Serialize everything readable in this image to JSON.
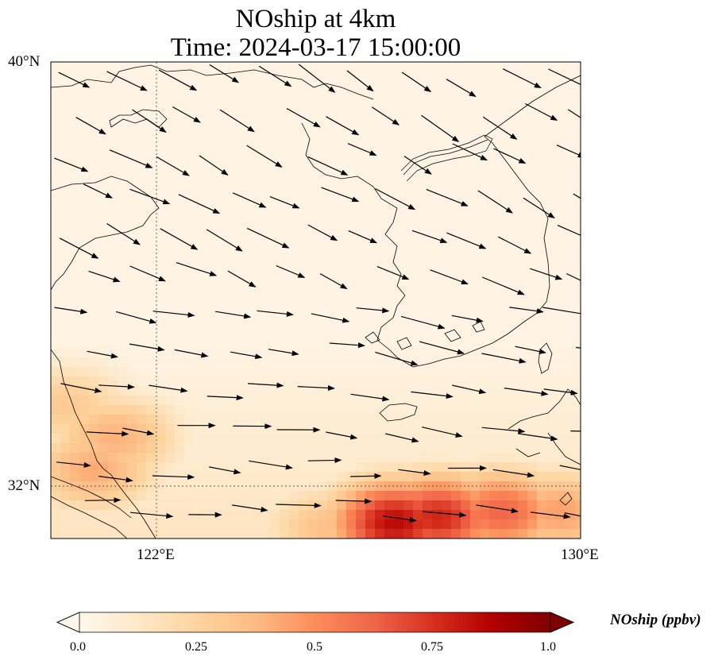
{
  "title_line1": "NOship at 4km",
  "title_line2": "Time: 2024-03-17 15:00:00",
  "lat_labels": [
    "40°N",
    "32°N"
  ],
  "lon_labels": [
    "122°E",
    "130°E"
  ],
  "colorbar": {
    "label": "NOship (ppbv)",
    "ticks": [
      "0.0",
      "0.25",
      "0.5",
      "0.75",
      "1.0"
    ],
    "min": 0.0,
    "max": 1.0,
    "colormap": "OrRd",
    "extend": "both"
  },
  "map": {
    "lon_range": [
      120,
      130
    ],
    "lat_range": [
      31,
      40
    ],
    "gridline_lons": [
      122
    ],
    "gridline_lats": [
      32
    ],
    "coastline_color": "#000000",
    "gridline_color": "#555555"
  },
  "concentration_hotspots": [
    {
      "lon": 120.8,
      "lat": 32.3,
      "value": 0.42
    },
    {
      "lon": 121.2,
      "lat": 32.9,
      "value": 0.4
    },
    {
      "lon": 120.3,
      "lat": 33.5,
      "value": 0.3
    },
    {
      "lon": 126.5,
      "lat": 31.3,
      "value": 0.85
    },
    {
      "lon": 127.3,
      "lat": 31.4,
      "value": 0.78
    },
    {
      "lon": 128.5,
      "lat": 31.5,
      "value": 0.62
    },
    {
      "lon": 129.6,
      "lat": 31.5,
      "value": 0.45
    },
    {
      "lon": 125.3,
      "lat": 31.2,
      "value": 0.35
    }
  ]
}
